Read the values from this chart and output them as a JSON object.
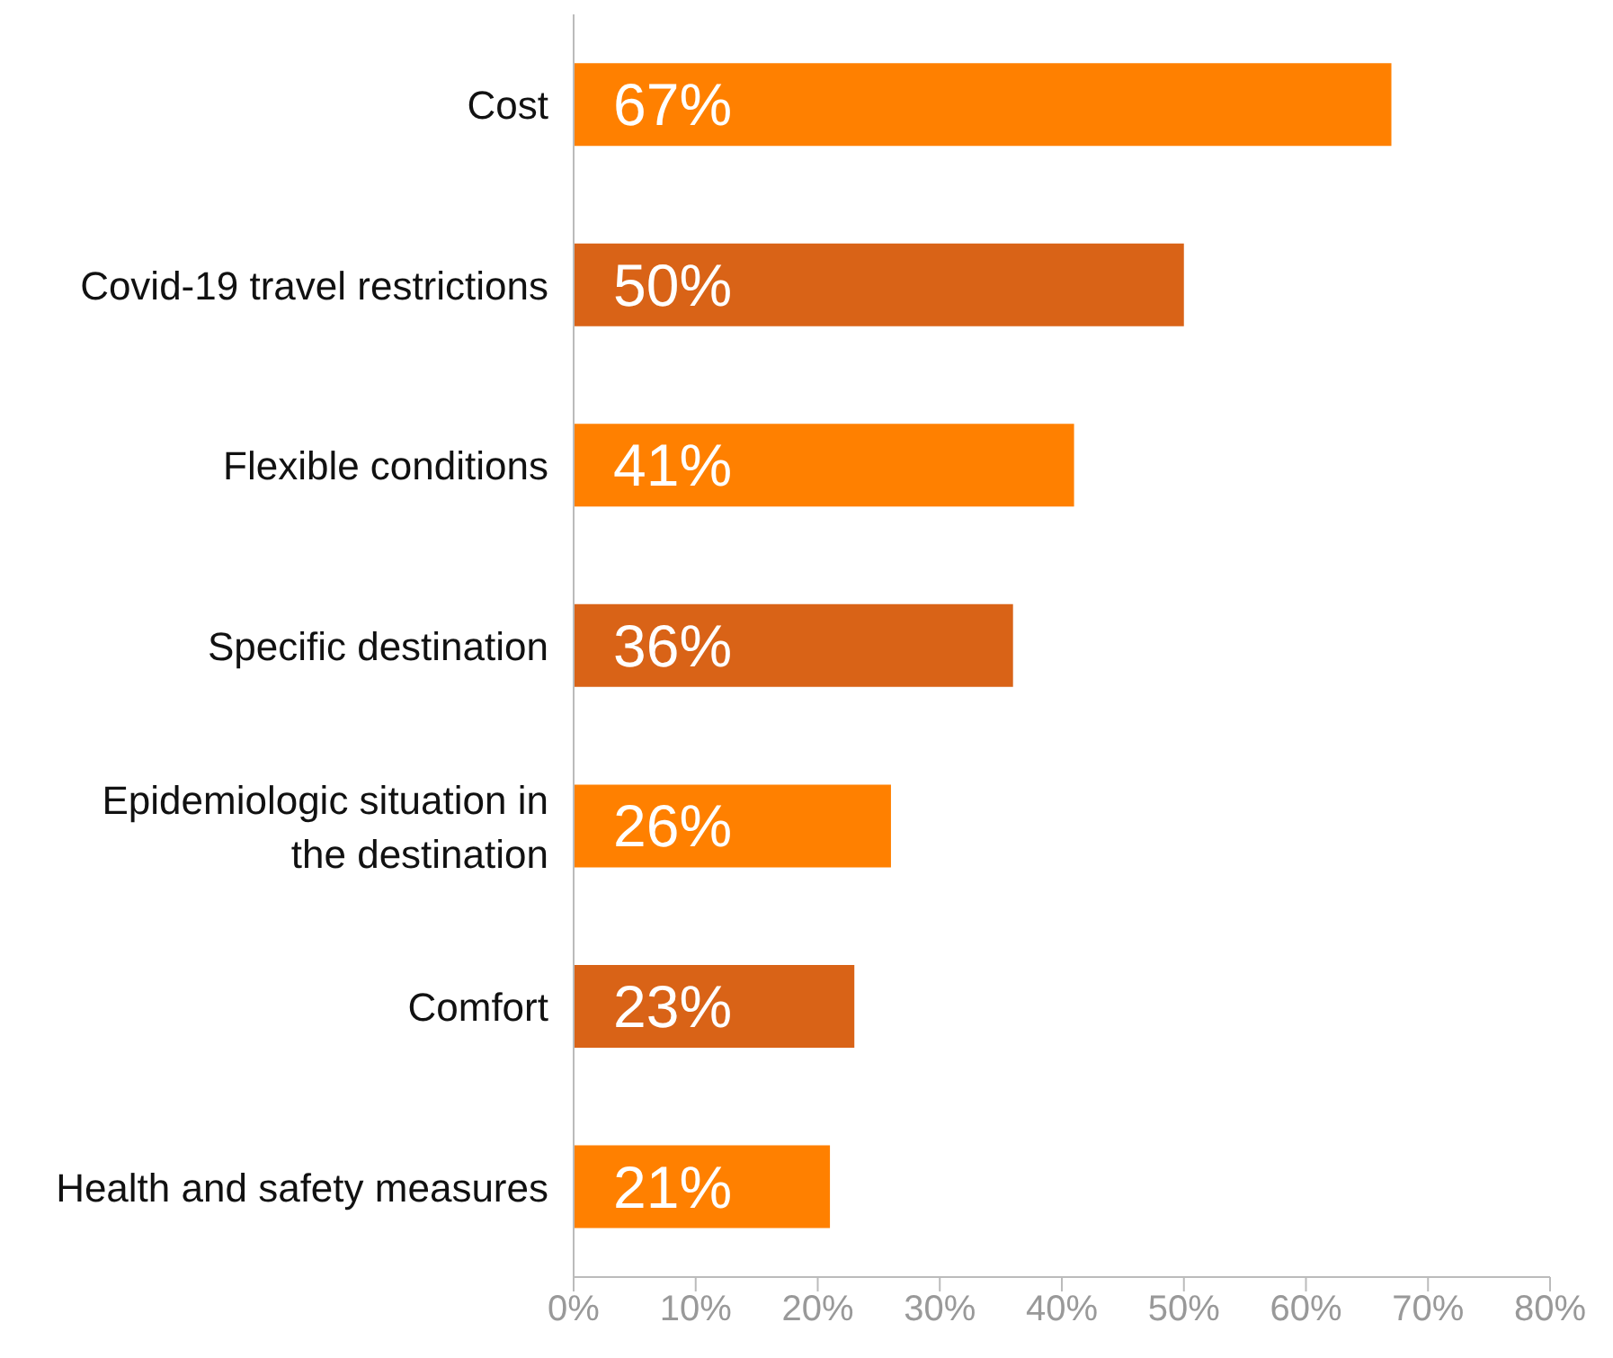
{
  "chart_data": {
    "type": "bar",
    "orientation": "horizontal",
    "categories": [
      "Cost",
      "Covid-19 travel restrictions",
      "Flexible conditions",
      "Specific destination",
      "Epidemiologic situation in the destination",
      "Comfort",
      "Health and safety measures"
    ],
    "values": [
      67,
      50,
      41,
      36,
      26,
      23,
      21
    ],
    "colors": [
      "#ff8000",
      "#d96317",
      "#ff8000",
      "#d96317",
      "#ff8000",
      "#d96317",
      "#ff8000"
    ],
    "value_labels": [
      "67%",
      "50%",
      "41%",
      "36%",
      "26%",
      "23%",
      "21%"
    ],
    "xlim": [
      0,
      80
    ],
    "xticks": [
      {
        "value": 0,
        "label": "0%"
      },
      {
        "value": 10,
        "label": "10%"
      },
      {
        "value": 20,
        "label": "20%"
      },
      {
        "value": 30,
        "label": "30%"
      },
      {
        "value": 40,
        "label": "40%"
      },
      {
        "value": 50,
        "label": "50%"
      },
      {
        "value": 60,
        "label": "60%"
      },
      {
        "value": 70,
        "label": "70%"
      },
      {
        "value": 80,
        "label": "80%"
      }
    ],
    "grid": false,
    "legend": false
  }
}
